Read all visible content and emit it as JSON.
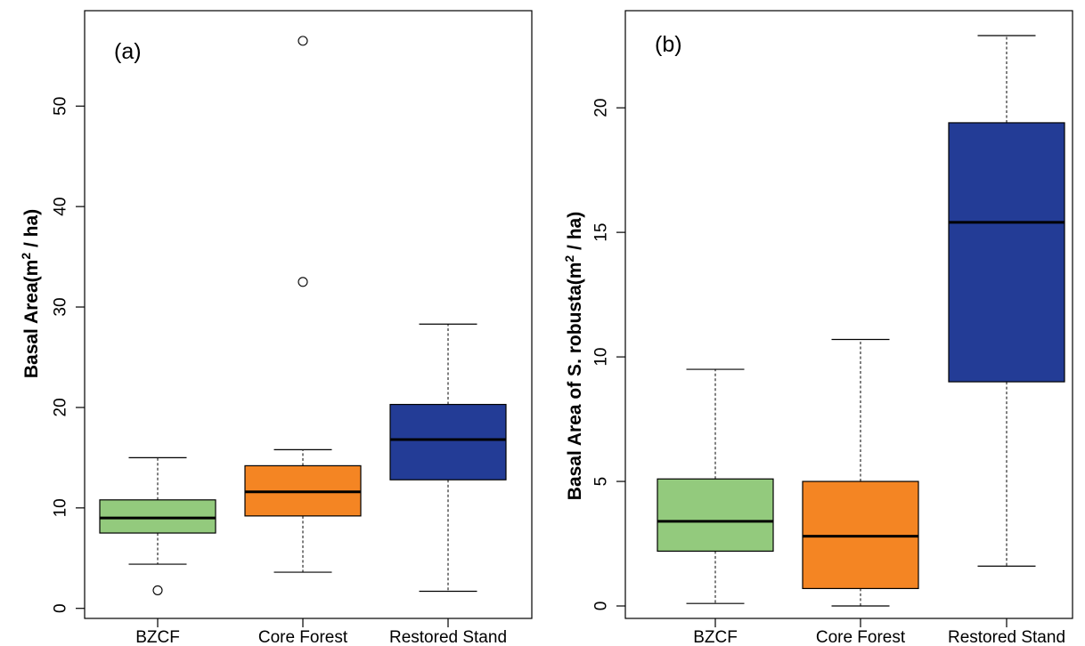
{
  "chart_data": [
    {
      "type": "box",
      "panel_label": "(a)",
      "ylabel": {
        "prefix": "Basal Area",
        "unit_open": "(m",
        "unit_sup": "2",
        "unit_close": " / ha)"
      },
      "ylim": [
        -1,
        59.5
      ],
      "yticks": [
        0,
        10,
        20,
        30,
        40,
        50
      ],
      "grid": false,
      "categories": [
        "BZCF",
        "Core Forest",
        "Restored Stand"
      ],
      "boxes": [
        {
          "name": "BZCF",
          "color": "#93CA7D",
          "whisker_low": 4.4,
          "q1": 7.5,
          "median": 9.0,
          "q3": 10.8,
          "whisker_high": 15.0,
          "outliers": [
            1.8
          ]
        },
        {
          "name": "Core Forest",
          "color": "#F48523",
          "whisker_low": 3.6,
          "q1": 9.2,
          "median": 11.6,
          "q3": 14.2,
          "whisker_high": 15.8,
          "outliers": [
            56.5,
            32.5
          ]
        },
        {
          "name": "Restored Stand",
          "color": "#233C96",
          "whisker_low": 1.7,
          "q1": 12.8,
          "median": 16.8,
          "q3": 20.3,
          "whisker_high": 28.3,
          "outliers": []
        }
      ]
    },
    {
      "type": "box",
      "panel_label": "(b)",
      "ylabel": {
        "prefix": "Basal Area of S. robusta",
        "unit_open": "(m",
        "unit_sup": "2",
        "unit_close": " / ha)"
      },
      "ylim": [
        -0.5,
        23.9
      ],
      "yticks": [
        0,
        5,
        10,
        15,
        20
      ],
      "grid": false,
      "categories": [
        "BZCF",
        "Core Forest",
        "Restored Stand"
      ],
      "boxes": [
        {
          "name": "BZCF",
          "color": "#93CA7D",
          "whisker_low": 0.1,
          "q1": 2.2,
          "median": 3.4,
          "q3": 5.1,
          "whisker_high": 9.5,
          "outliers": []
        },
        {
          "name": "Core Forest",
          "color": "#F48523",
          "whisker_low": 0.0,
          "q1": 0.7,
          "median": 2.8,
          "q3": 5.0,
          "whisker_high": 10.7,
          "outliers": []
        },
        {
          "name": "Restored Stand",
          "color": "#233C96",
          "whisker_low": 1.6,
          "q1": 9.0,
          "median": 15.4,
          "q3": 19.4,
          "whisker_high": 22.9,
          "outliers": []
        }
      ]
    }
  ]
}
